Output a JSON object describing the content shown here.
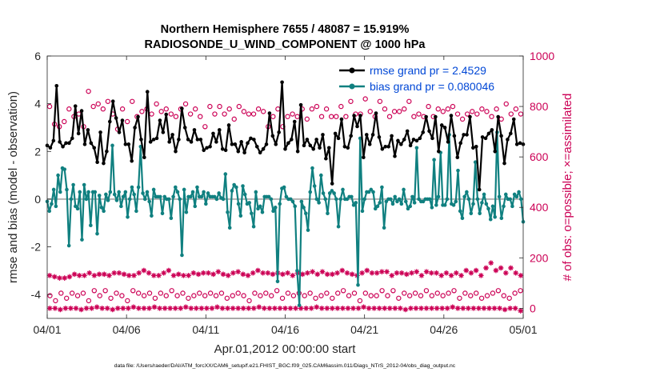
{
  "chart_data": {
    "type": "line",
    "title_line1": "Northern Hemisphere 7655 / 48087 = 15.919%",
    "title_line2": "RADIOSONDE_U_WIND_COMPONENT @ 1000 hPa",
    "xlabel": "Apr.01,2012 00:00:00 start",
    "ylabel_left": "rmse and bias (model - observation)",
    "ylabel_right": "# of obs: o=possible; ×=assimilated",
    "footer": "data file: /Users/raeder/DAI/ATM_forcXX/CAM6_setup/f.e21.FHIST_BGC.f09_025.CAM6assim.011/Diags_NTrS_2012-04/obs_diag_output.nc",
    "x_ticks": [
      "04/01",
      "04/06",
      "04/11",
      "04/16",
      "04/21",
      "04/26",
      "05/01"
    ],
    "x_tick_days": [
      0,
      5,
      10,
      15,
      20,
      25,
      30
    ],
    "xlim": [
      0,
      30
    ],
    "ylim_left": [
      -5,
      6
    ],
    "y_ticks_left": [
      "-4",
      "-2",
      "0",
      "2",
      "4",
      "6"
    ],
    "y_tick_values_left": [
      -4,
      -2,
      0,
      2,
      4,
      6
    ],
    "ylim_right": [
      -40,
      1000
    ],
    "y_ticks_right": [
      "0",
      "200",
      "400",
      "600",
      "800",
      "1000"
    ],
    "y_tick_values_right": [
      0,
      200,
      400,
      600,
      800,
      1000
    ],
    "colors": {
      "rmse": "#000000",
      "bias": "#108080",
      "obs": "#cc0055",
      "zero_line": "#b3b3b3",
      "axis": "#262626",
      "legend_text": "#0047d6",
      "right_axis": "#cc0055"
    },
    "series": [
      {
        "name": "rmse grand pr = 2.4529",
        "marker": "filled-circle",
        "values": [
          2.25,
          2.15,
          2.45,
          4.75,
          2.4,
          2.2,
          2.35,
          2.35,
          2.55,
          3.9,
          2.75,
          3.7,
          2.3,
          2.9,
          2.35,
          2.15,
          1.55,
          2.8,
          1.5,
          2.0,
          3.25,
          4.1,
          3.4,
          2.8,
          3.3,
          2.3,
          2.3,
          1.6,
          3.0,
          3.45,
          2.5,
          1.75,
          4.5,
          2.4,
          2.5,
          2.55,
          3.3,
          2.8,
          3.55,
          2.4,
          2.7,
          2.0,
          2.5,
          3.8,
          3.0,
          2.5,
          2.4,
          2.9,
          2.5,
          2.5,
          2.05,
          2.15,
          2.2,
          2.75,
          2.4,
          2.9,
          2.1,
          2.05,
          3.1,
          2.3,
          2.3,
          2.0,
          2.4,
          1.95,
          2.35,
          2.55,
          2.5,
          2.2,
          1.95,
          2.1,
          2.3,
          3.6,
          2.65,
          2.3,
          2.8,
          4.9,
          2.1,
          2.35,
          2.5,
          3.25,
          2.0,
          3.95,
          2.25,
          2.5,
          2.25,
          2.1,
          2.5,
          2.15,
          2.7,
          1.7,
          2.15,
          0.65,
          2.75,
          2.55,
          3.35,
          2.2,
          2.15,
          2.65,
          3.5,
          3.05,
          3.5,
          1.75,
          2.7,
          2.3,
          2.7,
          3.6,
          2.6,
          2.1,
          2.2,
          2.2,
          2.65,
          1.8,
          2.45,
          2.3,
          2.5,
          2.85,
          2.25,
          2.5,
          2.45,
          2.55,
          2.8,
          3.45,
          2.85,
          2.55,
          3.45,
          2.0,
          3.1,
          3.0,
          2.4,
          3.5,
          2.65,
          1.75,
          2.35,
          2.7,
          2.7,
          3.45,
          2.15,
          2.2,
          0.4,
          2.6,
          2.55,
          2.75,
          2.9,
          2.0,
          3.45,
          2.65,
          1.5,
          2.5,
          2.75,
          3.35,
          2.3,
          2.35,
          2.3
        ]
      },
      {
        "name": "bias grand pr = 0.080046",
        "marker": "filled-circle",
        "values": [
          -0.1,
          -0.5,
          -0.2,
          0.4,
          -0.3,
          1.0,
          0.3,
          1.3,
          1.25,
          0.4,
          -1.95,
          0.0,
          0.6,
          -0.3,
          -0.4,
          0.3,
          -1.7,
          0.6,
          0.0,
          0.3,
          -1.1,
          0.3,
          0.3,
          -1.45,
          0.15,
          -0.35,
          -0.5,
          0.2,
          -0.05,
          0.3,
          2.25,
          0.2,
          -0.05,
          0.3,
          -0.3,
          0.1,
          0.3,
          -0.75,
          0.0,
          0.5,
          0.2,
          -0.5,
          0.5,
          2.2,
          0.25,
          0.0,
          0.3,
          -0.1,
          -0.7,
          0.4,
          0.1,
          0.1,
          0.1,
          -0.6,
          0.1,
          0.0,
          0.0,
          -0.8,
          0.1,
          0.5,
          0.3,
          0.0,
          -2.35,
          0.4,
          -0.55,
          0.1,
          0.1,
          0.3,
          -0.3,
          0.5,
          0.1,
          0.1,
          0.3,
          -0.2,
          0.25,
          0.1,
          0.1,
          0.1,
          0.0,
          0.25,
          0.05,
          0.0,
          1.05,
          -0.55,
          -1.2,
          0.35,
          0.6,
          0.5,
          -0.2,
          -0.7,
          0.55,
          0.2,
          -0.2,
          -0.15,
          -0.6,
          -1.15,
          0.3,
          -0.4,
          -0.3,
          -0.55,
          0.1,
          0.1,
          0.1,
          0.0,
          -0.5,
          -0.35,
          -3.45,
          -0.2,
          0.45,
          0.5,
          0.1,
          0.0,
          0.0,
          -0.1,
          -0.3,
          -3.0,
          -4.45,
          -0.1,
          -0.35,
          -0.6,
          -1.3,
          0.3,
          1.3,
          0.55,
          0.0,
          -0.15,
          1.0,
          0.25,
          0.0,
          -0.6,
          0.25,
          0.35,
          0.25,
          0.0,
          -1.15,
          0.0,
          0.4,
          0.0,
          0.0,
          0.1,
          0.1,
          -0.25,
          -0.15,
          -3.6,
          2.55,
          -0.5,
          0.0,
          0.3,
          0.3,
          0.4,
          0.3,
          -0.4,
          -0.3,
          -0.15,
          0.5,
          -1.2,
          -0.1,
          0.0,
          0.0,
          -0.2,
          0.1,
          -0.1,
          0.0,
          -0.2,
          0.4,
          -0.1,
          -0.4,
          -0.3,
          0.1,
          -0.15,
          2.15,
          0.0,
          -0.1,
          -0.1,
          0.0,
          0.0,
          0.0,
          -0.35,
          1.65,
          -0.25,
          0.1,
          1.95,
          -0.25,
          -0.25,
          0.0,
          2.7,
          -0.2,
          -0.25,
          -0.1,
          1.2,
          -0.5,
          -0.8,
          0.1,
          0.3,
          0.0,
          -0.6,
          -0.2,
          1.55,
          0.0,
          -0.6,
          -0.15,
          0.2,
          -0.2,
          -0.4,
          -0.85,
          -0.3,
          -0.75,
          2.8,
          0.1,
          -0.8,
          -0.3,
          0.2,
          0.0,
          0.0,
          -0.3,
          0.2,
          0.1,
          0.3,
          0.0,
          -0.95
        ]
      }
    ],
    "obs_counts_possible_upper": [
      800,
      730,
      720,
      740,
      790,
      760,
      770,
      720,
      860,
      800,
      810,
      790,
      820,
      770,
      710,
      790,
      740,
      820,
      760,
      780,
      790,
      770,
      810,
      780,
      790,
      770,
      760,
      790,
      810,
      770,
      790,
      760,
      720,
      800,
      770,
      800,
      770,
      790,
      750,
      800,
      780,
      770,
      770,
      790,
      780,
      720,
      760,
      790,
      720,
      760,
      770,
      760,
      790,
      750,
      790,
      800,
      760,
      790,
      760,
      760,
      800,
      760,
      820,
      770,
      770,
      830,
      780,
      760,
      820,
      790,
      760,
      780,
      780,
      790,
      820,
      760,
      770,
      760,
      800,
      760,
      790,
      780,
      790,
      800,
      770,
      750,
      770,
      780,
      770,
      790,
      780,
      760,
      790,
      750,
      810,
      770,
      790,
      770
    ],
    "obs_counts_assimilated_upper": [
      130,
      125,
      120,
      120,
      125,
      135,
      130,
      130,
      140,
      130,
      135,
      135,
      130,
      140,
      140,
      135,
      130,
      130,
      140,
      150,
      140,
      130,
      130,
      140,
      150,
      130,
      135,
      130,
      130,
      140,
      135,
      140,
      140,
      135,
      145,
      135,
      130,
      140,
      145,
      135,
      130,
      140,
      150,
      140,
      140,
      135,
      140,
      135,
      140,
      130,
      140,
      135,
      140,
      145,
      135,
      145,
      135,
      135,
      140,
      150,
      140,
      135,
      130,
      140,
      150,
      140,
      140,
      145,
      145,
      130,
      140,
      140,
      135,
      140,
      145,
      130,
      145,
      140,
      140,
      130,
      140,
      130,
      140,
      130,
      150,
      140,
      150,
      130,
      160,
      180,
      150,
      160,
      140,
      160,
      140,
      130
    ],
    "obs_counts_possible_lower": [
      50,
      30,
      60,
      40,
      60,
      50,
      60,
      30,
      70,
      50,
      70,
      40,
      60,
      50,
      30,
      70,
      60,
      50,
      60,
      40,
      60,
      50,
      70,
      50,
      60,
      40,
      50,
      60,
      50,
      60,
      50,
      60,
      40,
      50,
      60,
      50,
      30,
      60,
      50,
      60,
      50,
      70,
      40,
      60,
      50,
      60,
      50,
      60,
      40,
      50,
      60,
      40,
      60,
      70,
      50,
      60,
      30,
      60,
      50,
      50,
      70,
      50,
      70,
      40,
      60,
      50,
      60,
      50,
      70,
      50,
      60,
      50,
      60,
      70,
      40,
      60,
      50,
      60,
      40,
      50,
      60,
      70,
      50,
      40,
      60,
      70
    ],
    "obs_counts_assimilated_lower": [
      0,
      0,
      -5,
      0,
      0,
      0,
      -5,
      0,
      0,
      5,
      0,
      0,
      -5,
      0,
      0,
      0,
      5,
      0,
      0,
      0,
      5,
      0,
      0,
      0,
      0,
      0,
      5,
      0,
      0,
      0,
      0,
      0,
      5,
      0,
      0,
      0,
      0,
      0,
      0,
      0,
      5,
      0,
      0,
      0,
      0,
      0,
      0,
      0,
      0,
      0,
      0,
      5,
      0,
      0,
      0,
      0,
      0,
      0,
      0,
      0,
      5,
      0,
      0,
      0,
      0,
      0,
      0,
      0,
      -5,
      0,
      0,
      0,
      0,
      0,
      0,
      0,
      0,
      5,
      0,
      0,
      0,
      0,
      0,
      0,
      0,
      0,
      0,
      -5,
      0,
      0,
      -10
    ]
  }
}
